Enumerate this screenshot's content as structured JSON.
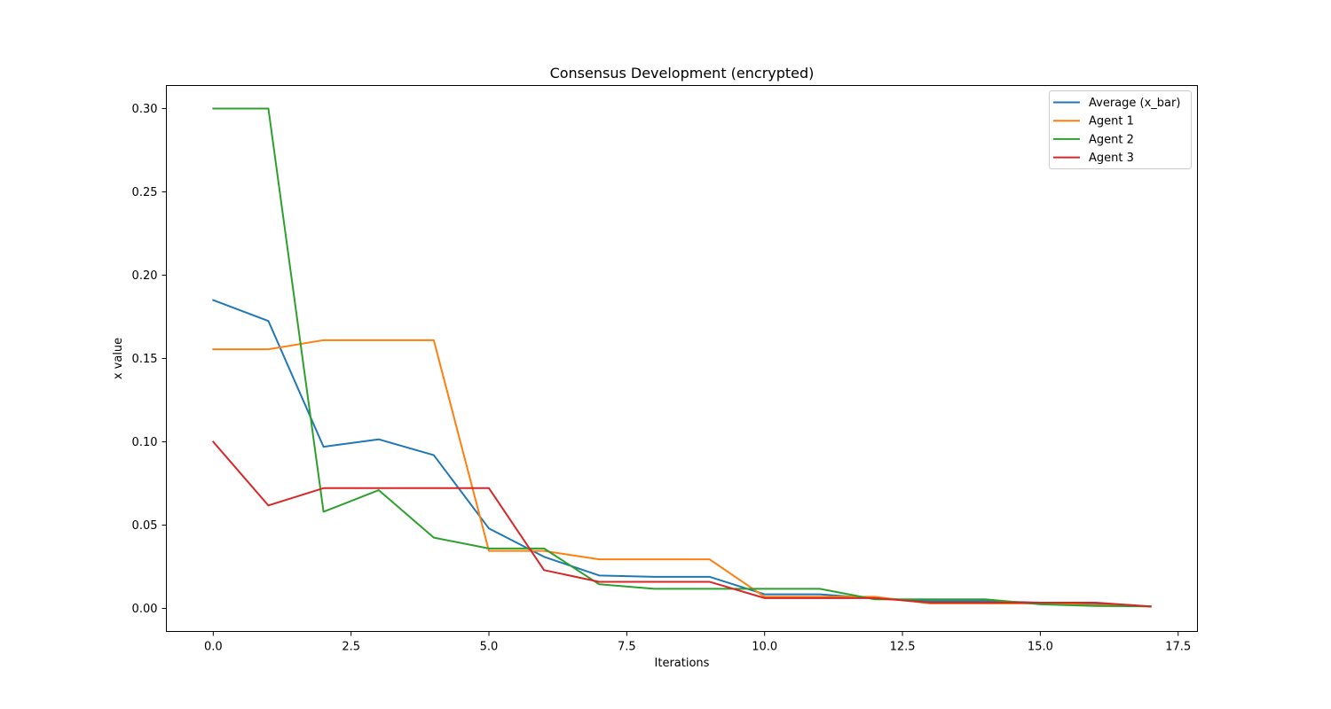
{
  "chart_data": {
    "type": "line",
    "title": "Consensus Development (encrypted)",
    "xlabel": "Iterations",
    "ylabel": "x value",
    "xlim": [
      -0.85,
      17.85
    ],
    "ylim": [
      -0.0138,
      0.3138
    ],
    "xticks": [
      0.0,
      2.5,
      5.0,
      7.5,
      10.0,
      12.5,
      15.0,
      17.5
    ],
    "xtick_labels": [
      "0.0",
      "2.5",
      "5.0",
      "7.5",
      "10.0",
      "12.5",
      "15.0",
      "17.5"
    ],
    "yticks": [
      0.0,
      0.05,
      0.1,
      0.15,
      0.2,
      0.25,
      0.3
    ],
    "ytick_labels": [
      "0.00",
      "0.05",
      "0.10",
      "0.15",
      "0.20",
      "0.25",
      "0.30"
    ],
    "grid": false,
    "legend_position": "top-right",
    "x": [
      0,
      1,
      2,
      3,
      4,
      5,
      6,
      7,
      8,
      9,
      10,
      11,
      12,
      13,
      14,
      15,
      16,
      17
    ],
    "series": [
      {
        "name": "Average (x_bar)",
        "color": "#1f77b4",
        "values": [
          0.185,
          0.1725,
          0.097,
          0.1015,
          0.092,
          0.048,
          0.031,
          0.0198,
          0.019,
          0.019,
          0.0085,
          0.0085,
          0.006,
          0.0045,
          0.0045,
          0.0035,
          0.003,
          0.0012
        ]
      },
      {
        "name": "Agent 1",
        "color": "#ff7f0e",
        "values": [
          0.1555,
          0.1555,
          0.161,
          0.161,
          0.161,
          0.0345,
          0.0345,
          0.0295,
          0.0295,
          0.0295,
          0.007,
          0.007,
          0.007,
          0.003,
          0.003,
          0.003,
          0.002,
          0.0012
        ]
      },
      {
        "name": "Agent 2",
        "color": "#2ca02c",
        "values": [
          0.3,
          0.3,
          0.058,
          0.071,
          0.0425,
          0.036,
          0.036,
          0.0145,
          0.0118,
          0.0118,
          0.0118,
          0.0118,
          0.0055,
          0.0055,
          0.0055,
          0.0025,
          0.0015,
          0.0012
        ]
      },
      {
        "name": "Agent 3",
        "color": "#d62728",
        "values": [
          0.1,
          0.0618,
          0.0722,
          0.0722,
          0.0722,
          0.0722,
          0.023,
          0.016,
          0.016,
          0.016,
          0.0062,
          0.0062,
          0.0062,
          0.0035,
          0.0035,
          0.0035,
          0.0035,
          0.0012
        ]
      }
    ]
  }
}
